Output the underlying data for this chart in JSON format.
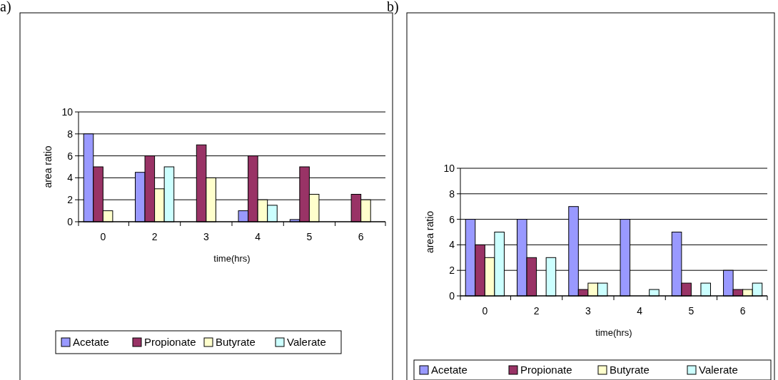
{
  "chart_data": [
    {
      "type": "bar",
      "title": "a)",
      "xlabel": "time(hrs)",
      "ylabel": "area ratio",
      "categories": [
        "0",
        "2",
        "3",
        "4",
        "5",
        "6"
      ],
      "ylim": [
        0,
        10
      ],
      "yticks": [
        0,
        2,
        4,
        6,
        8,
        10
      ],
      "grid": "y",
      "legend": "bottom",
      "series": [
        {
          "name": "Acetate",
          "color": "#9999ff",
          "values": [
            8,
            4.5,
            null,
            1,
            0.2,
            null
          ]
        },
        {
          "name": "Propionate",
          "color": "#993366",
          "values": [
            5,
            6,
            7,
            6,
            5,
            2.5
          ]
        },
        {
          "name": "Butyrate",
          "color": "#ffffcc",
          "values": [
            1,
            3,
            4,
            2,
            2.5,
            2
          ]
        },
        {
          "name": "Valerate",
          "color": "#ccffff",
          "values": [
            null,
            5,
            null,
            1.5,
            null,
            null
          ]
        }
      ]
    },
    {
      "type": "bar",
      "title": "b)",
      "xlabel": "time(hrs)",
      "ylabel": "area ratio",
      "categories": [
        "0",
        "2",
        "3",
        "4",
        "5",
        "6"
      ],
      "ylim": [
        0,
        10
      ],
      "yticks": [
        0,
        2,
        4,
        6,
        8,
        10
      ],
      "grid": "y",
      "legend": "bottom",
      "series": [
        {
          "name": "Acetate",
          "color": "#9999ff",
          "values": [
            6,
            6,
            7,
            6,
            5,
            2
          ]
        },
        {
          "name": "Propionate",
          "color": "#993366",
          "values": [
            4,
            3,
            0.5,
            null,
            1,
            0.5
          ]
        },
        {
          "name": "Butyrate",
          "color": "#ffffcc",
          "values": [
            3,
            null,
            1,
            null,
            null,
            0.5
          ]
        },
        {
          "name": "Valerate",
          "color": "#ccffff",
          "values": [
            5,
            3,
            1,
            0.5,
            1,
            1
          ]
        }
      ]
    }
  ]
}
